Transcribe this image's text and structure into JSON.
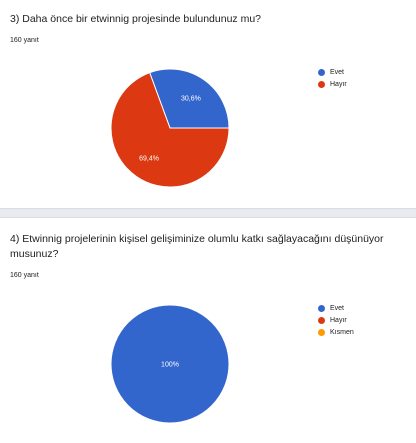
{
  "questions": [
    {
      "title": "3) Daha önce bir etwinnig projesinde bulundunuz mu?",
      "response_count": "160 yanıt"
    },
    {
      "title": "4) Etwinnig projelerinin kişisel gelişiminize olumlu katkı sağlayacağını  düşünüyor musunuz?",
      "response_count": "160 yanıt"
    }
  ],
  "chart_data": [
    {
      "type": "pie",
      "series": [
        {
          "label": "Evet",
          "value": 30.6,
          "display": "30,6%",
          "color": "#3366cc"
        },
        {
          "label": "Hayır",
          "value": 69.4,
          "display": "69,4%",
          "color": "#dc3912"
        }
      ],
      "legend_position": "right"
    },
    {
      "type": "pie",
      "series": [
        {
          "label": "Evet",
          "value": 100,
          "display": "100%",
          "color": "#3366cc"
        },
        {
          "label": "Hayır",
          "value": 0,
          "display": "",
          "color": "#dc3912"
        },
        {
          "label": "Kısmen",
          "value": 0,
          "display": "",
          "color": "#ff9900"
        }
      ],
      "legend_position": "right"
    }
  ]
}
